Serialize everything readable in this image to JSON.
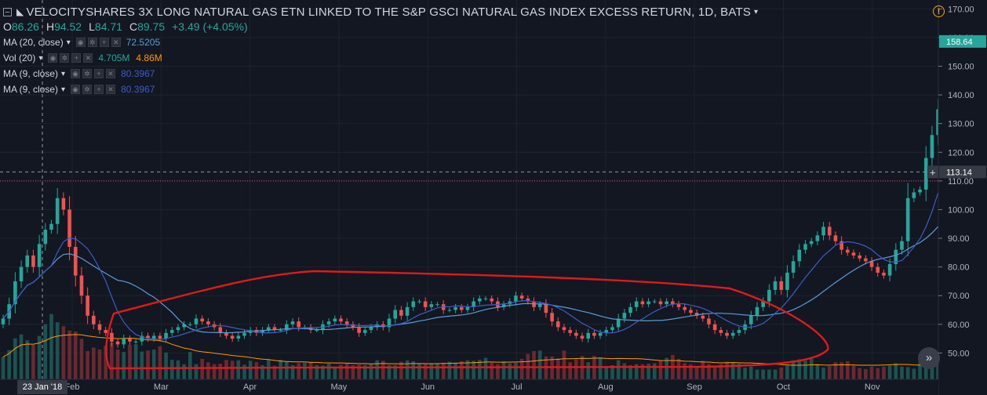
{
  "header": {
    "symbol_title": "VELOCITYSHARES 3X LONG NATURAL GAS ETN LINKED TO THE S&P GSCI NATURAL GAS INDEX EXCESS RETURN, 1D, BATS",
    "ohlc": {
      "o_label": "O",
      "o": "86.26",
      "h_label": "H",
      "h": "94.52",
      "l_label": "L",
      "l": "84.71",
      "c_label": "C",
      "c": "89.75",
      "change": "+3.49 (+4.05%)"
    }
  },
  "indicators": [
    {
      "name": "MA (20, close)",
      "values": [
        "72.5205"
      ],
      "colors": [
        "#5b9bd5"
      ]
    },
    {
      "name": "Vol (20)",
      "values": [
        "4.705M",
        "4.86M"
      ],
      "colors": [
        "#26a69a",
        "#ff9800"
      ]
    },
    {
      "name": "MA (9, close)",
      "values": [
        "80.3967"
      ],
      "colors": [
        "#3c5dc4"
      ]
    },
    {
      "name": "MA (9, close)",
      "values": [
        "80.3967"
      ],
      "colors": [
        "#3c5dc4"
      ]
    }
  ],
  "icons": {
    "collapse": "collapse-icon",
    "eye": "eye-icon",
    "settings": "gear-icon",
    "add": "plus-icon",
    "close": "close-icon",
    "alert": "alert-icon",
    "scroll": "double-chevron-right-icon"
  },
  "glyphs": {
    "alert": "!",
    "scroll": "»",
    "btn_eye": "◉",
    "btn_gear": "✲",
    "btn_plus": "+",
    "btn_close": "✕",
    "caret": "▾",
    "logo": "◣"
  },
  "chart_data": {
    "type": "candlestick",
    "y_range": [
      43,
      172
    ],
    "y_ticks": [
      50,
      60,
      70,
      80,
      90,
      100,
      110,
      120,
      130,
      140,
      150,
      160,
      170
    ],
    "y_tick_labels": [
      "50.00",
      "60.00",
      "70.00",
      "80.00",
      "90.00",
      "100.00",
      "110.00",
      "120.00",
      "130.00",
      "140.00",
      "150.00",
      "160.00",
      "170.00"
    ],
    "x_labels": [
      "Feb",
      "Mar",
      "Apr",
      "May",
      "Jun",
      "Jul",
      "Aug",
      "Sep",
      "Oct",
      "Nov"
    ],
    "crosshair": {
      "date_label": "23 Jan '18",
      "price_label": "113.14",
      "price": 113.14
    },
    "last_price": {
      "label": "158.64",
      "value": 158.64
    },
    "horizontal_level": 110,
    "colors": {
      "up": "#26a69a",
      "down": "#ef5350",
      "ma20": "#5b9bd5",
      "ma9": "#3c5dc4",
      "vol_ma": "#ff9800",
      "annotation": "#e01a1a",
      "level": "#d94a6b"
    },
    "closes": [
      62,
      67,
      75,
      80,
      84,
      80,
      88,
      93,
      95,
      104,
      100,
      87,
      77,
      70,
      63,
      60,
      58,
      57,
      54,
      53,
      55,
      54,
      54,
      56,
      55,
      56,
      55,
      57,
      58,
      59,
      60,
      60,
      62,
      61,
      60,
      59,
      57,
      56,
      55,
      56,
      57,
      58,
      57,
      58,
      59,
      58,
      58,
      60,
      61,
      59,
      59,
      58,
      58,
      60,
      61,
      62,
      61,
      60,
      59,
      57,
      58,
      59,
      60,
      59,
      62,
      65,
      63,
      66,
      68,
      68,
      66,
      67,
      67,
      65,
      65,
      66,
      65,
      66,
      68,
      69,
      69,
      68,
      66,
      67,
      68,
      70,
      69,
      68,
      66,
      67,
      64,
      61,
      59,
      58,
      57,
      56,
      55,
      57,
      56,
      57,
      58,
      59,
      62,
      64,
      66,
      68,
      67,
      68,
      68,
      67,
      68,
      67,
      66,
      65,
      64,
      63,
      62,
      60,
      58,
      57,
      56,
      57,
      58,
      60,
      63,
      66,
      68,
      72,
      75,
      72,
      78,
      82,
      86,
      88,
      89,
      91,
      94,
      91,
      89,
      86,
      85,
      84,
      83,
      82,
      80,
      78,
      77,
      81,
      86,
      89,
      104,
      106,
      107,
      118,
      126,
      135,
      152,
      158.64
    ],
    "volumes": [
      4.6,
      6.0,
      8.4,
      9.2,
      8.0,
      7.1,
      8.9,
      11.3,
      13.4,
      11.7,
      10.9,
      10.0,
      9.8,
      8.3,
      5.8,
      6.5,
      6.1,
      6.9,
      7.6,
      6.1,
      5.6,
      7.1,
      7.2,
      5.7,
      5.9,
      6.1,
      6.8,
      5.5,
      4.0,
      3.9,
      3.1,
      5.6,
      3.1,
      4.2,
      3.5,
      3.1,
      3.2,
      4.0,
      3.8,
      3.9,
      3.0,
      3.8,
      3.5,
      2.9,
      4.0,
      2.8,
      4.0,
      3.7,
      2.9,
      3.3,
      3.4,
      3.5,
      2.9,
      2.8,
      3.2,
      2.6,
      3.0,
      3.2,
      2.9,
      3.0,
      2.9,
      3.1,
      3.9,
      3.8,
      2.9,
      2.9,
      3.6,
      3.9,
      3.7,
      3.3,
      3.1,
      3.3,
      3.3,
      3.4,
      3.6,
      3.4,
      3.7,
      3.9,
      3.8,
      4.0,
      4.4,
      3.4,
      3.1,
      3.7,
      3.3,
      3.4,
      4.2,
      5.2,
      5.8,
      5.9,
      4.7,
      4.7,
      4.3,
      5.9,
      3.5,
      4.1,
      4.8,
      3.5,
      4.8,
      4.5,
      2.6,
      2.9,
      3.9,
      3.3,
      2.9,
      3.1,
      3.1,
      3.2,
      3.3,
      3.9,
      4.4,
      5.0,
      4.2,
      3.3,
      3.1,
      2.4,
      3.8,
      3.1,
      2.8,
      3.1,
      3.6,
      3.3,
      3.2,
      2.4,
      2.6,
      2.0,
      2.0,
      2.0,
      2.0,
      2.4,
      2.8,
      3.9,
      4.1,
      3.8,
      4.2,
      2.9,
      2.4,
      2.7,
      3.5,
      3.5,
      3.7,
      2.8,
      2.3,
      2.1,
      2.6,
      2.3,
      2.6,
      2.8,
      3.3,
      2.6,
      2.5,
      2.2,
      3.5,
      4.2,
      5.3,
      4.3,
      3.3,
      4.6
    ],
    "volume_range_max": 45
  }
}
